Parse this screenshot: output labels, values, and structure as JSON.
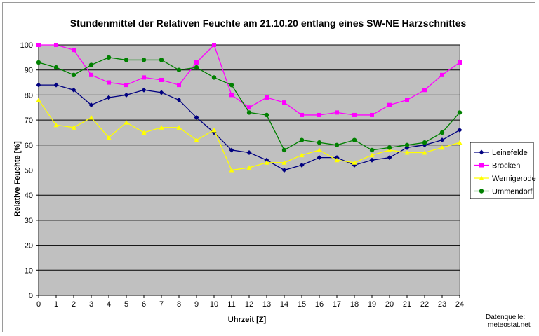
{
  "chart_data": {
    "type": "line",
    "title": "Stundenmittel der Relativen Feuchte am 21.10.20 entlang eines SW-NE Harzschnittes",
    "xlabel": "Uhrzeit [Z]",
    "ylabel": "Relative Feuchte [%]",
    "ylim": [
      0,
      100
    ],
    "yticks": [
      0,
      10,
      20,
      30,
      40,
      50,
      60,
      70,
      80,
      90,
      100
    ],
    "x": [
      0,
      1,
      2,
      3,
      4,
      5,
      6,
      7,
      8,
      9,
      10,
      11,
      12,
      13,
      14,
      15,
      16,
      17,
      18,
      19,
      20,
      21,
      22,
      23,
      24
    ],
    "grid": "horizontal",
    "legend_position": "right",
    "plot_background": "#c0c0c0",
    "series": [
      {
        "name": "Leinefelde",
        "color": "#000080",
        "marker": "diamond",
        "values": [
          84,
          84,
          82,
          76,
          79,
          80,
          82,
          81,
          78,
          71,
          65,
          58,
          57,
          54,
          50,
          52,
          55,
          55,
          52,
          54,
          55,
          59,
          60,
          62,
          66
        ]
      },
      {
        "name": "Brocken",
        "color": "#ff00ff",
        "marker": "square",
        "values": [
          100,
          100,
          98,
          88,
          85,
          84,
          87,
          86,
          84,
          93,
          100,
          80,
          75,
          79,
          77,
          72,
          72,
          73,
          72,
          72,
          76,
          78,
          82,
          88,
          93
        ]
      },
      {
        "name": "Wernigerode",
        "color": "#ffff00",
        "marker": "triangle",
        "values": [
          78,
          68,
          67,
          71,
          63,
          69,
          65,
          67,
          67,
          62,
          66,
          50,
          51,
          53,
          53,
          56,
          58,
          54,
          53,
          56,
          58,
          57,
          57,
          59,
          61
        ]
      },
      {
        "name": "Ummendorf",
        "color": "#008000",
        "marker": "circle",
        "values": [
          93,
          91,
          88,
          92,
          95,
          94,
          94,
          94,
          90,
          91,
          87,
          84,
          73,
          72,
          58,
          62,
          61,
          60,
          62,
          58,
          59,
          60,
          61,
          65,
          73
        ]
      }
    ]
  },
  "source_note": {
    "line1": "Datenquelle:",
    "line2": "meteostat.net"
  }
}
